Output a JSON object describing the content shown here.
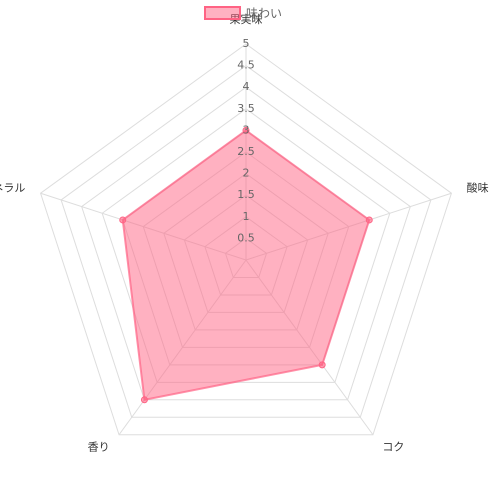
{
  "chart_data": {
    "type": "radar",
    "categories": [
      "果実味",
      "酸味",
      "コク",
      "香り",
      "ミネラル"
    ],
    "series": [
      {
        "name": "味わい",
        "color": "#ff6384",
        "values": [
          3,
          3,
          3,
          4,
          3
        ]
      }
    ],
    "ylim": [
      0,
      5
    ],
    "yticks": [
      0.5,
      1,
      1.5,
      2,
      2.5,
      3,
      3.5,
      4,
      4.5,
      5
    ],
    "grid": true,
    "legend": "top"
  }
}
